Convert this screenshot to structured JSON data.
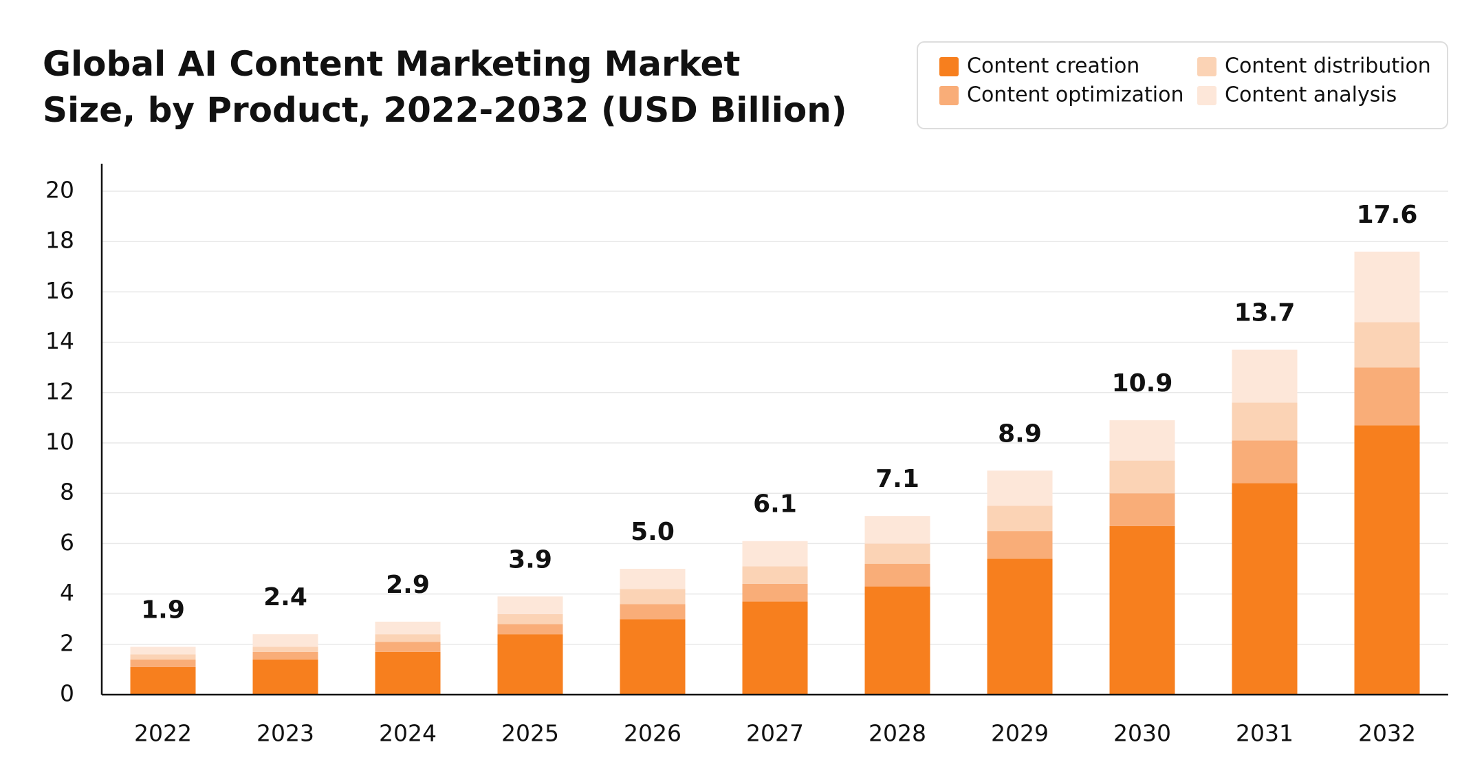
{
  "chart_data": {
    "type": "stacked-bar",
    "title": [
      "Global AI Content Marketing Market",
      "Size, by Product, 2022-2032 (USD Billion)"
    ],
    "categories": [
      "2022",
      "2023",
      "2024",
      "2025",
      "2026",
      "2027",
      "2028",
      "2029",
      "2030",
      "2031",
      "2032"
    ],
    "series": [
      {
        "name": "Content creation",
        "color": "#f77f1e",
        "values": [
          1.1,
          1.4,
          1.7,
          2.4,
          3.0,
          3.7,
          4.3,
          5.4,
          6.7,
          8.4,
          10.7
        ]
      },
      {
        "name": "Content optimization",
        "color": "#f9ad78",
        "values": [
          0.3,
          0.3,
          0.4,
          0.4,
          0.6,
          0.7,
          0.9,
          1.1,
          1.3,
          1.7,
          2.3
        ]
      },
      {
        "name": "Content distribution",
        "color": "#fbd3b5",
        "values": [
          0.2,
          0.2,
          0.3,
          0.4,
          0.6,
          0.7,
          0.8,
          1.0,
          1.3,
          1.5,
          1.8
        ]
      },
      {
        "name": "Content analysis",
        "color": "#fde7d9",
        "values": [
          0.3,
          0.5,
          0.5,
          0.7,
          0.8,
          1.0,
          1.1,
          1.4,
          1.6,
          2.1,
          2.8
        ]
      }
    ],
    "totals": {
      "values": [
        1.9,
        2.4,
        2.9,
        3.9,
        5,
        6.1,
        7.1,
        8.9,
        10.9,
        13.7,
        17.6
      ],
      "value_labels": [
        "1.9",
        "2.4",
        "2.9",
        "3.9",
        "5.0",
        "6.1",
        "7.1",
        "8.9",
        "10.9",
        "13.7",
        "17.6"
      ]
    },
    "ylim": [
      0,
      20
    ],
    "yticks": [
      0,
      2,
      4,
      6,
      8,
      10,
      12,
      14,
      16,
      18,
      20
    ],
    "grid": true
  }
}
